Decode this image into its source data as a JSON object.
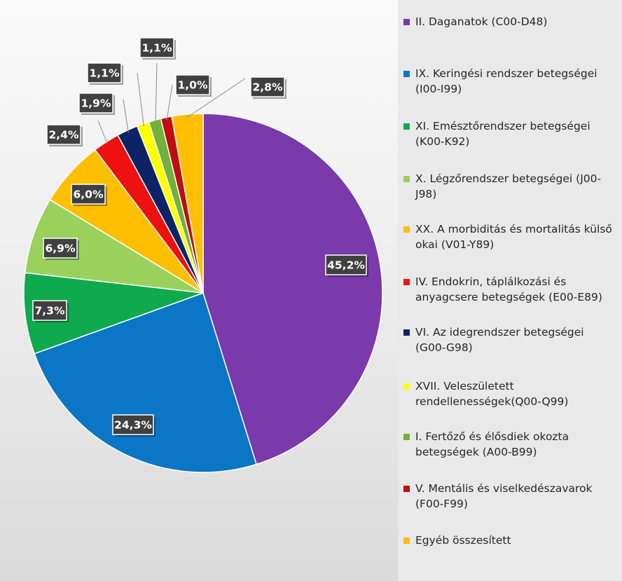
{
  "chart_data": {
    "type": "pie",
    "title": "",
    "legend_position": "right",
    "slices": [
      {
        "label": "II. Daganatok (C00-D48)",
        "value": 45.2,
        "value_label": "45,2%",
        "color": "#7a3aab"
      },
      {
        "label": "IX. Keringési rendszer betegségei (I00-I99)",
        "value": 24.3,
        "value_label": "24,3%",
        "color": "#0b76c6"
      },
      {
        "label": "XI. Emésztőrendszer betegségei (K00-K92)",
        "value": 7.3,
        "value_label": "7,3%",
        "color": "#0faa4e"
      },
      {
        "label": "X. Légzőrendszer betegségei (J00-J98)",
        "value": 6.9,
        "value_label": "6,9%",
        "color": "#9ad15d"
      },
      {
        "label": "XX. A morbiditás és mortalitás külső okai (V01-Y89)",
        "value": 6.0,
        "value_label": "6,0%",
        "color": "#fdbf00"
      },
      {
        "label": "IV. Endokrin, táplálkozási és anyagcsere betegségek (E00-E89)",
        "value": 2.4,
        "value_label": "2,4%",
        "color": "#ee1111"
      },
      {
        "label": "VI. Az idegrendszer betegségei (G00-G98)",
        "value": 1.9,
        "value_label": "1,9%",
        "color": "#0c2466"
      },
      {
        "label": "XVII. Veleszületett rendellenességek(Q00-Q99)",
        "value": 1.1,
        "value_label": "1,1%",
        "color": "#ffff00"
      },
      {
        "label": "I. Fertőző és élősdiek okozta betegségek  (A00-B99)",
        "value": 1.1,
        "value_label": "1,1%",
        "color": "#6fb23d"
      },
      {
        "label": "V. Mentális és viselkedészavarok (F00-F99)",
        "value": 1.0,
        "value_label": "1,0%",
        "color": "#c00d0d"
      },
      {
        "label": "Egyéb összesített",
        "value": 2.8,
        "value_label": "2,8%",
        "color": "#fdbf00"
      }
    ]
  }
}
